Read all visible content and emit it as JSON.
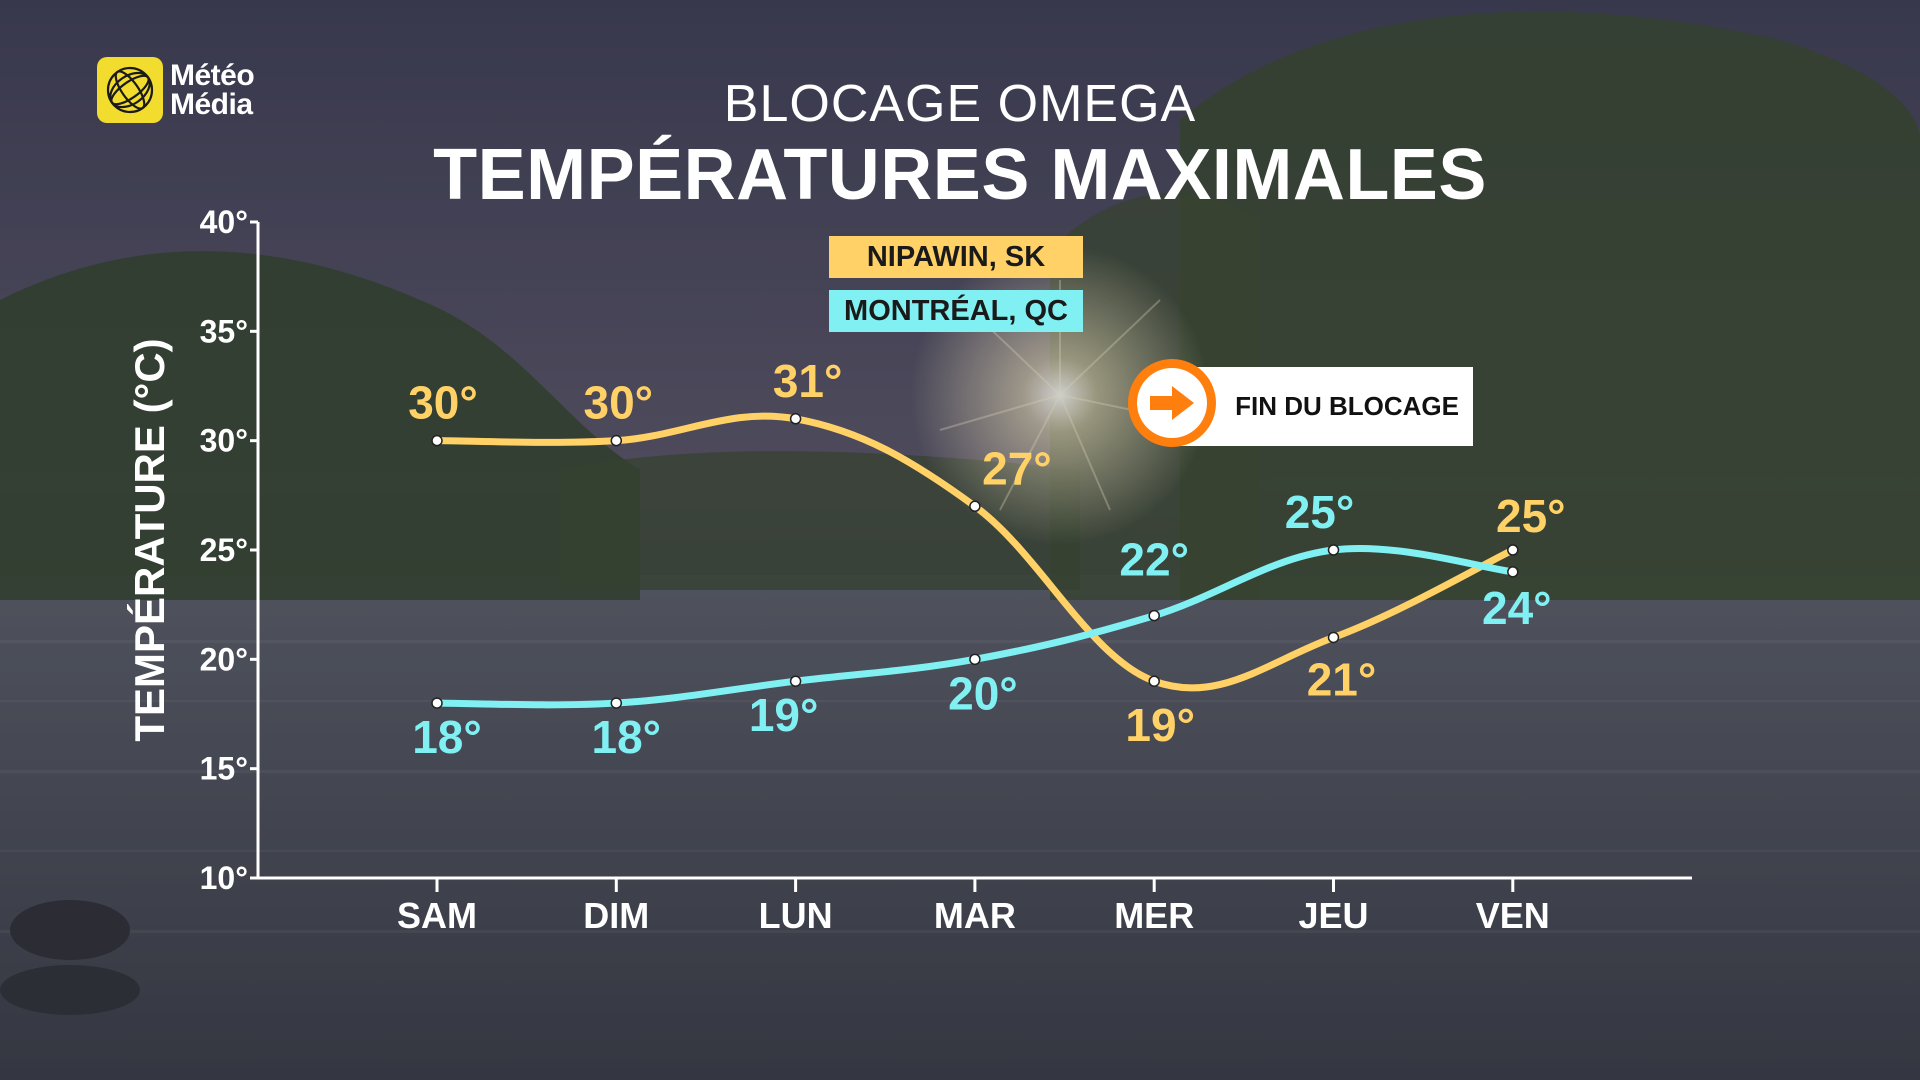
{
  "brand": {
    "line1": "Météo",
    "line2": "Média"
  },
  "title_top": "BLOCAGE OMEGA",
  "title_main": "TEMPÉRATURES MAXIMALES",
  "callout": {
    "label": "FIN DU BLOCAGE",
    "icon": "arrow-right-icon",
    "accent": "#ff7f0e"
  },
  "colors": {
    "nipawin": "#ffd166",
    "montreal": "#80f0f2",
    "axis": "#ffffff",
    "logo": "#f2dc2e"
  },
  "chart_data": {
    "type": "line",
    "title": "TEMPÉRATURES MAXIMALES",
    "ylabel": "TEMPÉRATURE (°C)",
    "xlabel": "",
    "categories": [
      "SAM",
      "DIM",
      "LUN",
      "MAR",
      "MER",
      "JEU",
      "VEN"
    ],
    "ylim": [
      10,
      40
    ],
    "yticks": [
      10,
      15,
      20,
      25,
      30,
      35,
      40
    ],
    "ytick_labels": [
      "10°",
      "15°",
      "20°",
      "25°",
      "30°",
      "35°",
      "40°"
    ],
    "grid": false,
    "legend_position": "top-center",
    "series": [
      {
        "name": "NIPAWIN, SK",
        "color": "#ffd166",
        "values": [
          30,
          30,
          31,
          27,
          19,
          21,
          25
        ],
        "labels": [
          "30°",
          "30°",
          "31°",
          "27°",
          "19°",
          "21°",
          "25°"
        ]
      },
      {
        "name": "MONTRÉAL, QC",
        "color": "#80f0f2",
        "values": [
          18,
          18,
          19,
          20,
          22,
          25,
          24
        ],
        "labels": [
          "18°",
          "18°",
          "19°",
          "20°",
          "22°",
          "25°",
          "24°"
        ]
      }
    ]
  }
}
